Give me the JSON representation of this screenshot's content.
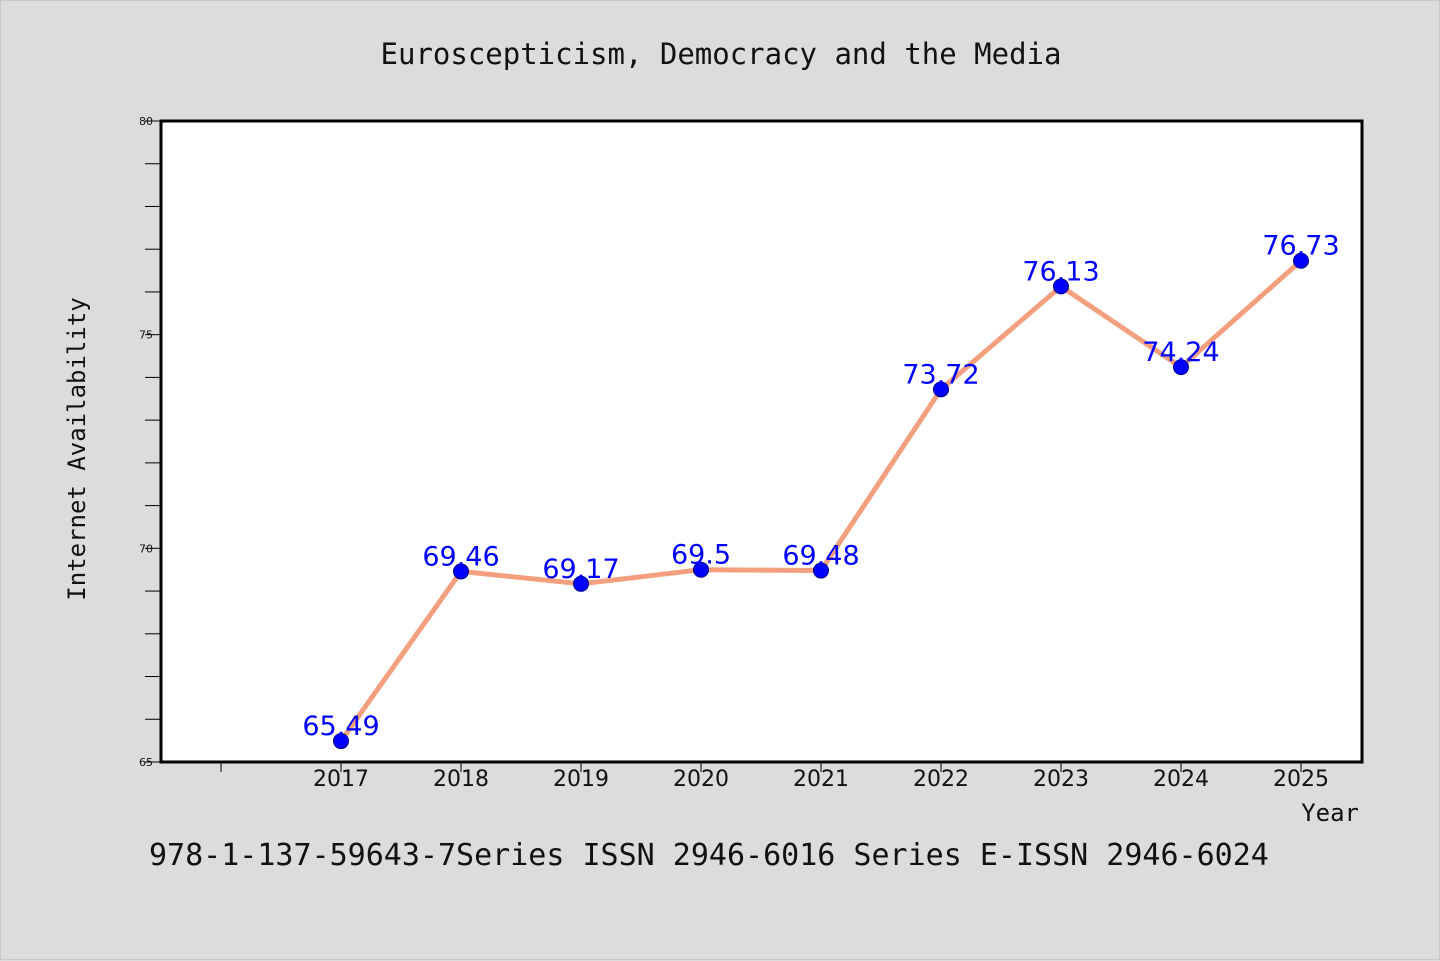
{
  "chart_data": {
    "type": "line",
    "title": "Euroscepticism, Democracy and the Media",
    "xlabel": "Year",
    "ylabel": "Internet Availability",
    "footer": "978-1-137-59643-7Series ISSN 2946-6016 Series E-ISSN 2946-6024",
    "x": [
      "2017",
      "2018",
      "2019",
      "2020",
      "2021",
      "2022",
      "2023",
      "2024",
      "2025"
    ],
    "y": [
      65.49,
      69.46,
      69.17,
      69.5,
      69.48,
      73.72,
      76.13,
      74.24,
      76.73
    ],
    "data_labels": [
      "65.49",
      "69.46",
      "69.17",
      "69.5",
      "69.48",
      "73.72",
      "76.13",
      "74.24",
      "76.73"
    ],
    "yticks": [
      65,
      70,
      75,
      80
    ],
    "ytick_labels": [
      "65",
      "70",
      "75",
      "80"
    ],
    "ylim": [
      65,
      80
    ],
    "grid": false,
    "colors": {
      "line": "#f4a07e",
      "marker": "#0000ff",
      "label": "#0000ff",
      "background": "#dcdcdc",
      "plot_area": "#ffffff"
    }
  }
}
